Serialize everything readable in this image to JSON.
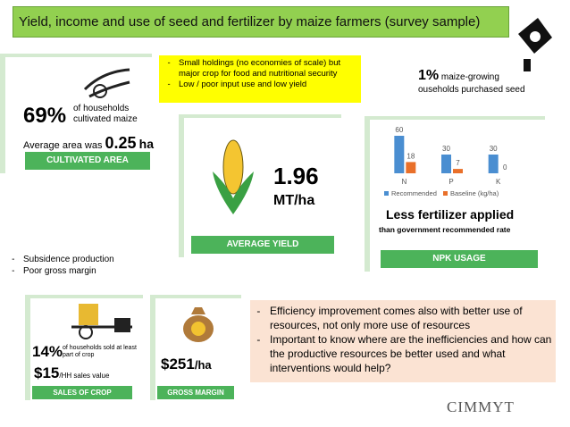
{
  "title": "Yield, income and use of seed and fertilizer by maize farmers (survey sample)",
  "cultivated_area": {
    "percent": "69%",
    "percent_text": "of households cultivated maize",
    "area_prefix": "Average area was",
    "area_value": "0.25",
    "area_unit": "ha",
    "label": "CULTIVATED AREA"
  },
  "yellow_notes": [
    "Small holdings (no economies of scale) but major crop for food and nutritional security",
    "Low / poor input use and low yield"
  ],
  "seed": {
    "percent": "1%",
    "line1": "maize-growing",
    "line2": "ouseholds purchased seed"
  },
  "average_yield": {
    "value": "1.96",
    "unit": "MT/ha",
    "label": "AVERAGE YIELD"
  },
  "npk": {
    "chart_data": {
      "type": "bar",
      "categories": [
        "N",
        "P",
        "K"
      ],
      "series": [
        {
          "name": "Recommended",
          "color": "#4a8ed1",
          "values": [
            60,
            30,
            30
          ]
        },
        {
          "name": "Baseline (kg/ha)",
          "color": "#e9702a",
          "values": [
            18,
            7,
            0
          ]
        }
      ],
      "ylim": [
        0,
        60
      ]
    },
    "headline": "Less fertilizer applied",
    "subline": "than government recommended rate",
    "label": "NPK USAGE"
  },
  "left_notes": [
    "Subsidence production",
    "Poor gross margin"
  ],
  "sales": {
    "percent": "14%",
    "percent_text": "of households sold at least part of crop",
    "value": "$15",
    "value_text": "/HH sales value",
    "label": "SALES OF CROP"
  },
  "gross_margin": {
    "value": "$251",
    "unit": "/ha",
    "label": "GROSS MARGIN"
  },
  "orange_notes": [
    "Efficiency improvement comes also with better use of resources, not only more use of resources",
    "Important to know where are the inefficiencies and how can the productive resources be better used and what interventions would help?"
  ],
  "logo": "CIMMYT"
}
